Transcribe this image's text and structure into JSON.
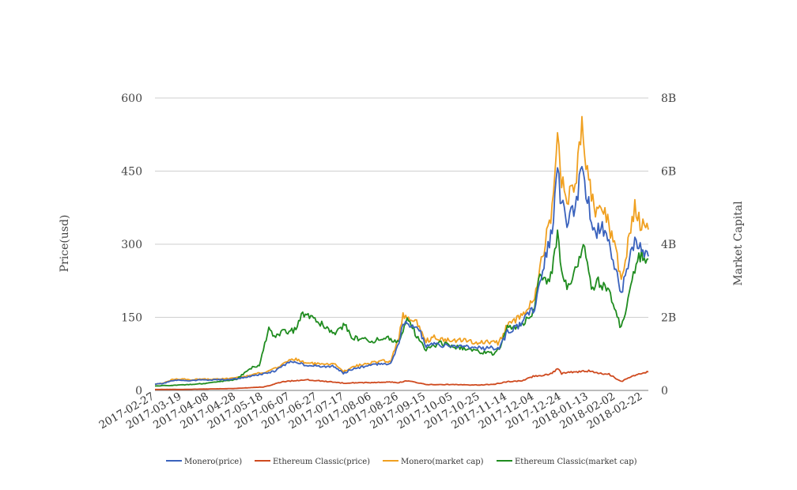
{
  "chart_data": {
    "type": "line",
    "title": "",
    "xlabel": "",
    "ylabel": "Price(usd)",
    "y2label": "Market Capital",
    "ylim": [
      0,
      600
    ],
    "y2lim": [
      0,
      8000000000
    ],
    "yticks": [
      "0",
      "150",
      "300",
      "450",
      "600"
    ],
    "y2ticks": [
      "0",
      "2B",
      "4B",
      "6B",
      "8B"
    ],
    "grid": true,
    "legend_position": "bottom",
    "x_start": "2017-02-27",
    "x_end": "2018-02-26",
    "xticks": [
      "2017-02-27",
      "2017-03-19",
      "2017-04-08",
      "2017-04-28",
      "2017-05-18",
      "2017-06-07",
      "2017-06-27",
      "2017-07-17",
      "2017-08-06",
      "2017-08-26",
      "2017-09-15",
      "2017-10-05",
      "2017-10-25",
      "2017-11-14",
      "2017-12-04",
      "2017-12-24",
      "2018-01-13",
      "2018-02-02",
      "2018-02-22"
    ],
    "series": [
      {
        "name": "Monero(price)",
        "color": "#3a62bd",
        "axis": "left",
        "points": [
          [
            "2017-02-27",
            13
          ],
          [
            "2017-03-05",
            14
          ],
          [
            "2017-03-12",
            20
          ],
          [
            "2017-03-19",
            21
          ],
          [
            "2017-03-26",
            20
          ],
          [
            "2017-04-02",
            22
          ],
          [
            "2017-04-09",
            21
          ],
          [
            "2017-04-16",
            22
          ],
          [
            "2017-04-23",
            22
          ],
          [
            "2017-04-30",
            25
          ],
          [
            "2017-05-07",
            28
          ],
          [
            "2017-05-14",
            32
          ],
          [
            "2017-05-21",
            35
          ],
          [
            "2017-05-28",
            42
          ],
          [
            "2017-06-04",
            55
          ],
          [
            "2017-06-11",
            60
          ],
          [
            "2017-06-18",
            52
          ],
          [
            "2017-06-25",
            50
          ],
          [
            "2017-07-02",
            48
          ],
          [
            "2017-07-09",
            50
          ],
          [
            "2017-07-16",
            35
          ],
          [
            "2017-07-23",
            45
          ],
          [
            "2017-07-30",
            48
          ],
          [
            "2017-08-06",
            52
          ],
          [
            "2017-08-13",
            55
          ],
          [
            "2017-08-20",
            55
          ],
          [
            "2017-08-26",
            100
          ],
          [
            "2017-08-29",
            140
          ],
          [
            "2017-09-03",
            135
          ],
          [
            "2017-09-10",
            125
          ],
          [
            "2017-09-15",
            90
          ],
          [
            "2017-09-20",
            95
          ],
          [
            "2017-09-27",
            92
          ],
          [
            "2017-10-05",
            90
          ],
          [
            "2017-10-12",
            92
          ],
          [
            "2017-10-19",
            88
          ],
          [
            "2017-10-25",
            86
          ],
          [
            "2017-11-01",
            88
          ],
          [
            "2017-11-08",
            86
          ],
          [
            "2017-11-14",
            120
          ],
          [
            "2017-11-21",
            130
          ],
          [
            "2017-11-28",
            150
          ],
          [
            "2017-12-04",
            170
          ],
          [
            "2017-12-10",
            250
          ],
          [
            "2017-12-17",
            330
          ],
          [
            "2017-12-21",
            450
          ],
          [
            "2017-12-24",
            380
          ],
          [
            "2017-12-28",
            350
          ],
          [
            "2018-01-03",
            370
          ],
          [
            "2018-01-08",
            460
          ],
          [
            "2018-01-13",
            380
          ],
          [
            "2018-01-18",
            320
          ],
          [
            "2018-01-23",
            340
          ],
          [
            "2018-01-28",
            300
          ],
          [
            "2018-02-02",
            250
          ],
          [
            "2018-02-06",
            200
          ],
          [
            "2018-02-10",
            250
          ],
          [
            "2018-02-16",
            310
          ],
          [
            "2018-02-20",
            290
          ],
          [
            "2018-02-26",
            275
          ]
        ]
      },
      {
        "name": "Ethereum Classic(price)",
        "color": "#cf4a1f",
        "axis": "left",
        "points": [
          [
            "2017-02-27",
            2
          ],
          [
            "2017-03-19",
            2
          ],
          [
            "2017-04-08",
            3
          ],
          [
            "2017-04-28",
            4
          ],
          [
            "2017-05-10",
            6
          ],
          [
            "2017-05-18",
            7
          ],
          [
            "2017-05-25",
            12
          ],
          [
            "2017-06-01",
            18
          ],
          [
            "2017-06-10",
            20
          ],
          [
            "2017-06-20",
            22
          ],
          [
            "2017-06-27",
            20
          ],
          [
            "2017-07-05",
            18
          ],
          [
            "2017-07-17",
            15
          ],
          [
            "2017-07-25",
            16
          ],
          [
            "2017-08-06",
            16
          ],
          [
            "2017-08-20",
            17
          ],
          [
            "2017-08-26",
            16
          ],
          [
            "2017-09-01",
            20
          ],
          [
            "2017-09-10",
            15
          ],
          [
            "2017-09-15",
            12
          ],
          [
            "2017-10-05",
            12
          ],
          [
            "2017-10-25",
            11
          ],
          [
            "2017-11-05",
            13
          ],
          [
            "2017-11-14",
            18
          ],
          [
            "2017-11-25",
            20
          ],
          [
            "2017-12-04",
            30
          ],
          [
            "2017-12-15",
            32
          ],
          [
            "2017-12-21",
            45
          ],
          [
            "2017-12-24",
            35
          ],
          [
            "2018-01-03",
            38
          ],
          [
            "2018-01-13",
            40
          ],
          [
            "2018-01-20",
            35
          ],
          [
            "2018-01-28",
            33
          ],
          [
            "2018-02-06",
            18
          ],
          [
            "2018-02-14",
            30
          ],
          [
            "2018-02-22",
            36
          ],
          [
            "2018-02-26",
            38
          ]
        ]
      },
      {
        "name": "Monero(market cap)",
        "color": "#f0a020",
        "axis": "right",
        "points": [
          [
            "2017-02-27",
            170000000
          ],
          [
            "2017-03-05",
            200000000
          ],
          [
            "2017-03-12",
            300000000
          ],
          [
            "2017-03-19",
            310000000
          ],
          [
            "2017-03-26",
            290000000
          ],
          [
            "2017-04-02",
            310000000
          ],
          [
            "2017-04-09",
            300000000
          ],
          [
            "2017-04-16",
            320000000
          ],
          [
            "2017-04-23",
            320000000
          ],
          [
            "2017-04-30",
            360000000
          ],
          [
            "2017-05-07",
            400000000
          ],
          [
            "2017-05-14",
            470000000
          ],
          [
            "2017-05-21",
            510000000
          ],
          [
            "2017-05-28",
            620000000
          ],
          [
            "2017-06-04",
            800000000
          ],
          [
            "2017-06-11",
            850000000
          ],
          [
            "2017-06-18",
            760000000
          ],
          [
            "2017-06-25",
            730000000
          ],
          [
            "2017-07-02",
            700000000
          ],
          [
            "2017-07-09",
            730000000
          ],
          [
            "2017-07-16",
            520000000
          ],
          [
            "2017-07-23",
            660000000
          ],
          [
            "2017-07-30",
            700000000
          ],
          [
            "2017-08-06",
            760000000
          ],
          [
            "2017-08-13",
            800000000
          ],
          [
            "2017-08-20",
            800000000
          ],
          [
            "2017-08-26",
            1450000000
          ],
          [
            "2017-08-29",
            2050000000
          ],
          [
            "2017-09-03",
            1950000000
          ],
          [
            "2017-09-10",
            1800000000
          ],
          [
            "2017-09-15",
            1350000000
          ],
          [
            "2017-09-20",
            1450000000
          ],
          [
            "2017-09-27",
            1400000000
          ],
          [
            "2017-10-05",
            1350000000
          ],
          [
            "2017-10-12",
            1400000000
          ],
          [
            "2017-10-19",
            1330000000
          ],
          [
            "2017-10-25",
            1300000000
          ],
          [
            "2017-11-01",
            1330000000
          ],
          [
            "2017-11-08",
            1300000000
          ],
          [
            "2017-11-14",
            1800000000
          ],
          [
            "2017-11-21",
            1950000000
          ],
          [
            "2017-11-28",
            2200000000
          ],
          [
            "2017-12-04",
            2500000000
          ],
          [
            "2017-12-10",
            3700000000
          ],
          [
            "2017-12-17",
            4900000000
          ],
          [
            "2017-12-21",
            7300000000
          ],
          [
            "2017-12-24",
            5800000000
          ],
          [
            "2017-12-28",
            5200000000
          ],
          [
            "2018-01-03",
            5600000000
          ],
          [
            "2018-01-08",
            7200000000
          ],
          [
            "2018-01-13",
            5700000000
          ],
          [
            "2018-01-18",
            4800000000
          ],
          [
            "2018-01-23",
            5100000000
          ],
          [
            "2018-01-28",
            4500000000
          ],
          [
            "2018-02-02",
            3800000000
          ],
          [
            "2018-02-06",
            3000000000
          ],
          [
            "2018-02-10",
            3800000000
          ],
          [
            "2018-02-16",
            5000000000
          ],
          [
            "2018-02-20",
            4600000000
          ],
          [
            "2018-02-26",
            4400000000
          ]
        ]
      },
      {
        "name": "Ethereum Classic(market cap)",
        "color": "#1f8c1f",
        "axis": "right",
        "points": [
          [
            "2017-02-27",
            120000000
          ],
          [
            "2017-03-19",
            150000000
          ],
          [
            "2017-04-08",
            200000000
          ],
          [
            "2017-04-28",
            300000000
          ],
          [
            "2017-05-08",
            600000000
          ],
          [
            "2017-05-15",
            700000000
          ],
          [
            "2017-05-22",
            1700000000
          ],
          [
            "2017-05-26",
            1500000000
          ],
          [
            "2017-06-02",
            1600000000
          ],
          [
            "2017-06-10",
            1650000000
          ],
          [
            "2017-06-16",
            2100000000
          ],
          [
            "2017-06-27",
            1900000000
          ],
          [
            "2017-07-05",
            1700000000
          ],
          [
            "2017-07-10",
            1500000000
          ],
          [
            "2017-07-17",
            1850000000
          ],
          [
            "2017-07-22",
            1450000000
          ],
          [
            "2017-08-06",
            1350000000
          ],
          [
            "2017-08-18",
            1450000000
          ],
          [
            "2017-08-26",
            1300000000
          ],
          [
            "2017-09-01",
            2000000000
          ],
          [
            "2017-09-08",
            1500000000
          ],
          [
            "2017-09-15",
            1100000000
          ],
          [
            "2017-09-25",
            1300000000
          ],
          [
            "2017-10-05",
            1200000000
          ],
          [
            "2017-10-15",
            1150000000
          ],
          [
            "2017-10-25",
            1050000000
          ],
          [
            "2017-11-05",
            1000000000
          ],
          [
            "2017-11-10",
            1300000000
          ],
          [
            "2017-11-14",
            1700000000
          ],
          [
            "2017-11-25",
            1800000000
          ],
          [
            "2017-12-04",
            2200000000
          ],
          [
            "2017-12-08",
            3200000000
          ],
          [
            "2017-12-15",
            2900000000
          ],
          [
            "2017-12-21",
            4200000000
          ],
          [
            "2017-12-24",
            3200000000
          ],
          [
            "2017-12-28",
            2800000000
          ],
          [
            "2018-01-03",
            3300000000
          ],
          [
            "2018-01-09",
            4000000000
          ],
          [
            "2018-01-13",
            3300000000
          ],
          [
            "2018-01-16",
            2700000000
          ],
          [
            "2018-01-20",
            3000000000
          ],
          [
            "2018-01-28",
            2700000000
          ],
          [
            "2018-02-06",
            1700000000
          ],
          [
            "2018-02-10",
            2300000000
          ],
          [
            "2018-02-16",
            3300000000
          ],
          [
            "2018-02-20",
            3700000000
          ],
          [
            "2018-02-26",
            3600000000
          ]
        ]
      }
    ]
  }
}
